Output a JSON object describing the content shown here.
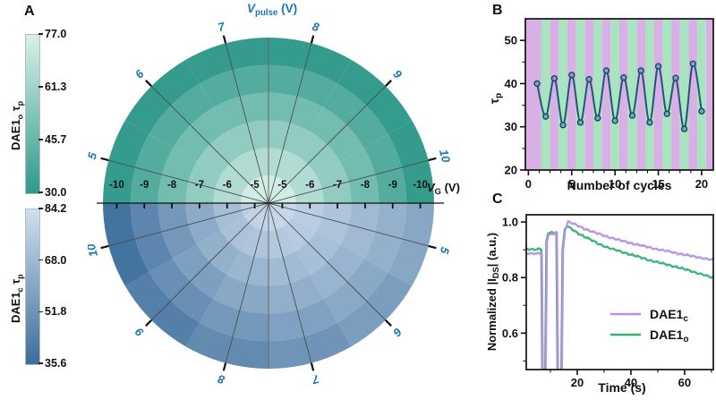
{
  "panels": {
    "a_label": "A",
    "b_label": "B",
    "c_label": "C"
  },
  "panelA": {
    "colorbars": [
      {
        "name": "DAE1",
        "name_sub": "o",
        "tau": "τ",
        "tau_sub": "p",
        "top_color": "#d9f0e8",
        "bottom_color": "#2f998a",
        "ticks": [
          "77.0",
          "61.3",
          "45.7",
          "30.0"
        ]
      },
      {
        "name": "DAE1",
        "name_sub": "c",
        "tau": "τ",
        "tau_sub": "p",
        "top_color": "#cfdfee",
        "bottom_color": "#3c6d9b",
        "ticks": [
          "84.2",
          "68.0",
          "51.8",
          "35.6"
        ]
      }
    ]
  },
  "chart_data": [
    {
      "type": "heatmap",
      "subtype": "polar_half_disks",
      "angle_axis_label": {
        "pre": "V",
        "sub": "pulse",
        "post": " (V)",
        "italic": true
      },
      "radius_axis_label": {
        "pre": "V",
        "sub": "G",
        "post": " (V)",
        "italic": true
      },
      "angle_tick_color": "#1777b5",
      "radial_tick_labels": [
        "-5",
        "-6",
        "-7",
        "-8",
        "-9",
        "-10"
      ],
      "top_half": {
        "name": "DAE1_o",
        "v_pulse": [
          5,
          6,
          7,
          8,
          9,
          10
        ],
        "v_g": [
          -5,
          -6,
          -7,
          -8,
          -9,
          -10
        ],
        "colormap": {
          "min": 30.0,
          "max": 77.0,
          "min_color": "#2f998a",
          "max_color": "#dcf2ea"
        },
        "values": [
          [
            74,
            65.5,
            57,
            48.5,
            40,
            31.5
          ],
          [
            74,
            65.5,
            57,
            48.5,
            40,
            31.5
          ],
          [
            74,
            65.5,
            57,
            48.5,
            40,
            31.5
          ],
          [
            74,
            65.5,
            57,
            48.5,
            40,
            31.5
          ],
          [
            74,
            65.5,
            57,
            48.5,
            40,
            31.5
          ],
          [
            74,
            65.5,
            57,
            48.5,
            40,
            31.5
          ]
        ]
      },
      "bottom_half": {
        "name": "DAE1_c",
        "v_pulse": [
          5,
          6,
          7,
          8,
          9,
          10
        ],
        "v_g": [
          -5,
          -6,
          -7,
          -8,
          -9,
          -10
        ],
        "colormap": {
          "min": 35.6,
          "max": 84.2,
          "min_color": "#3c6d9b",
          "max_color": "#d3e1ef"
        },
        "values": [
          [
            80,
            76,
            72,
            68,
            64,
            60
          ],
          [
            79.5,
            74.8,
            70.1,
            65.4,
            60.7,
            56
          ],
          [
            79,
            73.6,
            68.2,
            62.8,
            57.4,
            52
          ],
          [
            78.5,
            72.4,
            66.3,
            60.2,
            54.1,
            48
          ],
          [
            78,
            71,
            64,
            57,
            50,
            43
          ],
          [
            77.5,
            69.6,
            61.7,
            53.8,
            45.9,
            38
          ]
        ]
      }
    },
    {
      "type": "line",
      "x_label": "Number of cycles",
      "y_label": {
        "pre": "τ",
        "sub": "p",
        "post": ""
      },
      "x": [
        1,
        2,
        3,
        4,
        5,
        6,
        7,
        8,
        9,
        10,
        11,
        12,
        13,
        14,
        15,
        16,
        17,
        18,
        19,
        20
      ],
      "y": [
        40,
        32.4,
        41.2,
        30.4,
        42,
        31,
        41,
        32,
        43,
        31.4,
        41.4,
        32.6,
        43,
        31,
        44,
        33,
        41.3,
        29.5,
        44.6,
        33.6
      ],
      "xlim": [
        -0.35,
        21.35
      ],
      "ylim": [
        20,
        55
      ],
      "x_major_ticks": [
        0,
        5,
        10,
        15,
        20
      ],
      "x_minor_step": 1.25,
      "y_major_ticks": [
        20,
        30,
        40,
        50
      ],
      "y_minor_ticks": [
        25,
        35,
        45
      ],
      "line_color": "#1d5a74",
      "marker_fill": "#6fa7c0",
      "marker_edge": "#173f52",
      "stripes": {
        "first_color": "#d8b0e6",
        "second_color": "#a9e4c0",
        "first_edge": 1.5,
        "width": 1
      }
    },
    {
      "type": "line",
      "x_label": "Time (s)",
      "y_label": {
        "pre": "Normalized |I",
        "sub": "DS",
        "post": "| (a.u.)"
      },
      "xlim": [
        1,
        70.7
      ],
      "ylim": [
        0.469,
        1.026
      ],
      "x_major_ticks": [
        20,
        40,
        60
      ],
      "x_minor_ticks": [
        10,
        30,
        50,
        70
      ],
      "y_major_ticks": [
        1.0,
        0.8,
        0.6
      ],
      "y_major_labels": [
        "1.0",
        "0.8",
        "0.6"
      ],
      "y_minor_ticks": [
        0.9,
        0.7,
        0.5
      ],
      "series": [
        {
          "name": {
            "pre": "DAE1",
            "sub": "c"
          },
          "color": "#b690e2",
          "points": [
            [
              1,
              0.886
            ],
            [
              6.8,
              0.886
            ],
            [
              7.2,
              0.4
            ],
            [
              8.2,
              0.4
            ],
            [
              8.7,
              0.93
            ],
            [
              9.3,
              0.954
            ],
            [
              11,
              0.957
            ],
            [
              12.4,
              0.96
            ],
            [
              12.9,
              0.4
            ],
            [
              14.2,
              0.4
            ],
            [
              14.7,
              0.9
            ],
            [
              15.5,
              0.972
            ],
            [
              16.6,
              1.0
            ],
            [
              18,
              0.996
            ],
            [
              20,
              0.987
            ],
            [
              24,
              0.971
            ],
            [
              28,
              0.957
            ],
            [
              32,
              0.945
            ],
            [
              36,
              0.934
            ],
            [
              40,
              0.924
            ],
            [
              44,
              0.915
            ],
            [
              48,
              0.906
            ],
            [
              52,
              0.898
            ],
            [
              56,
              0.89
            ],
            [
              60,
              0.882
            ],
            [
              64,
              0.875
            ],
            [
              68,
              0.868
            ],
            [
              71.3,
              0.863
            ]
          ]
        },
        {
          "name": {
            "pre": "DAE1",
            "sub": "o"
          },
          "color": "#36b176",
          "points": [
            [
              1,
              0.902
            ],
            [
              6.6,
              0.902
            ],
            [
              7.0,
              0.4
            ],
            [
              8.0,
              0.4
            ],
            [
              8.5,
              0.93
            ],
            [
              9.1,
              0.958
            ],
            [
              10.5,
              0.962
            ],
            [
              12.2,
              0.963
            ],
            [
              12.7,
              0.4
            ],
            [
              14.0,
              0.4
            ],
            [
              14.5,
              0.9
            ],
            [
              15.3,
              0.972
            ],
            [
              16.1,
              0.985
            ],
            [
              18,
              0.974
            ],
            [
              20,
              0.961
            ],
            [
              24,
              0.941
            ],
            [
              28,
              0.921
            ],
            [
              32,
              0.906
            ],
            [
              36,
              0.894
            ],
            [
              40,
              0.883
            ],
            [
              44,
              0.871
            ],
            [
              48,
              0.86
            ],
            [
              52,
              0.85
            ],
            [
              56,
              0.841
            ],
            [
              60,
              0.83
            ],
            [
              64,
              0.819
            ],
            [
              68,
              0.807
            ],
            [
              71.3,
              0.796
            ]
          ]
        }
      ]
    }
  ]
}
